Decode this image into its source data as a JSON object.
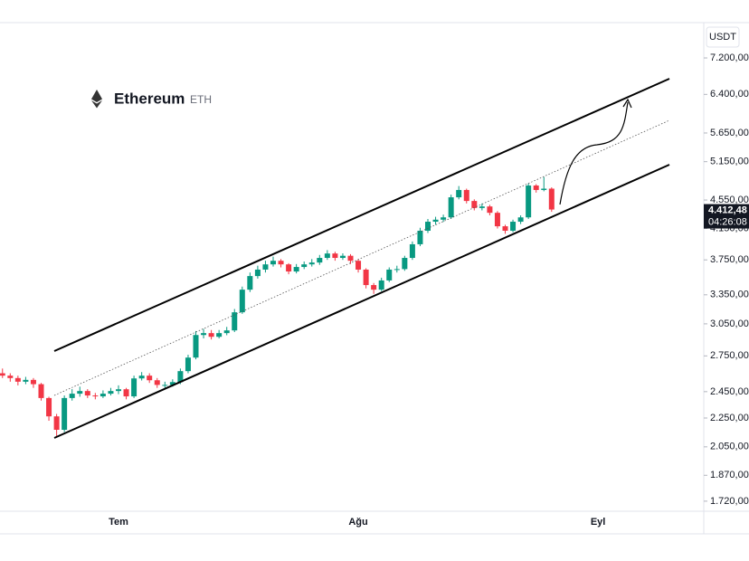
{
  "chart_data": {
    "type": "candlestick",
    "title": "Ethereum",
    "subtitle": "ETH",
    "currency": "USDT",
    "log_scale": true,
    "grid": false,
    "up_color": "#089981",
    "down_color": "#f23645",
    "ylim": [
      1665,
      8070
    ],
    "yticks": [
      {
        "value": 7200,
        "label": "7.200,00"
      },
      {
        "value": 6400,
        "label": "6.400,00"
      },
      {
        "value": 5650,
        "label": "5.650,00"
      },
      {
        "value": 5150,
        "label": "5.150,00"
      },
      {
        "value": 4550,
        "label": "4.550,00"
      },
      {
        "value": 4150,
        "label": "4.150,00"
      },
      {
        "value": 3750,
        "label": "3.750,00"
      },
      {
        "value": 3350,
        "label": "3.350,00"
      },
      {
        "value": 3050,
        "label": "3.050,00"
      },
      {
        "value": 2750,
        "label": "2.750,00"
      },
      {
        "value": 2450,
        "label": "2.450,00"
      },
      {
        "value": 2250,
        "label": "2.250,00"
      },
      {
        "value": 2050,
        "label": "2.050,00"
      },
      {
        "value": 1870,
        "label": "1.870,00"
      },
      {
        "value": 1720,
        "label": "1.720,00"
      }
    ],
    "last_price": {
      "value": 4412.48,
      "label": "4.412,48"
    },
    "countdown": "04:26:08",
    "categories": [
      null,
      null,
      null,
      null,
      null,
      null,
      null,
      null,
      null,
      null,
      null,
      null,
      null,
      null,
      null,
      "Tem",
      null,
      null,
      null,
      null,
      null,
      null,
      null,
      null,
      null,
      null,
      null,
      null,
      null,
      null,
      null,
      null,
      null,
      null,
      null,
      null,
      null,
      null,
      null,
      null,
      null,
      null,
      null,
      null,
      null,
      null,
      "Ağu",
      null,
      null,
      null,
      null,
      null,
      null,
      null,
      null,
      null,
      null,
      null,
      null,
      null,
      null,
      null,
      null,
      null,
      null,
      null,
      null,
      null,
      null,
      null,
      null,
      null,
      null,
      null,
      null,
      null,
      null,
      "Eyl",
      null,
      null,
      null,
      null,
      null,
      null,
      null,
      null,
      null,
      null,
      null,
      null,
      null
    ],
    "open": [
      2600,
      2580,
      2560,
      2530,
      2545,
      2510,
      2400,
      2262,
      2166,
      2400,
      2434,
      2455,
      2420,
      2413,
      2434,
      2455,
      2469,
      2413,
      2557,
      2580,
      2542,
      2504,
      2504,
      2527,
      2618,
      2735,
      2942,
      2960,
      2925,
      2960,
      2986,
      3166,
      3406,
      3559,
      3634,
      3696,
      3739,
      3696,
      3612,
      3665,
      3696,
      3718,
      3774,
      3828,
      3774,
      3800,
      3739,
      3634,
      3457,
      3406,
      3509,
      3634,
      3640,
      3774,
      3944,
      4120,
      4242,
      4270,
      4302,
      4590,
      4700,
      4536,
      4434,
      4456,
      4366,
      4180,
      4120,
      4242,
      4302,
      4768,
      4700,
      4720,
      null,
      null,
      null,
      null,
      null,
      null,
      null,
      null,
      null,
      null,
      null,
      null,
      null,
      null,
      null,
      null,
      null,
      null,
      null
    ],
    "high": [
      2640,
      2600,
      2580,
      2570,
      2560,
      2520,
      2410,
      2280,
      2420,
      2470,
      2490,
      2470,
      2440,
      2460,
      2480,
      2500,
      2480,
      2580,
      2610,
      2600,
      2560,
      2530,
      2550,
      2640,
      2760,
      2980,
      3000,
      2990,
      2990,
      3020,
      3200,
      3440,
      3600,
      3680,
      3740,
      3790,
      3760,
      3710,
      3700,
      3730,
      3760,
      3810,
      3870,
      3850,
      3830,
      3820,
      3760,
      3650,
      3480,
      3540,
      3660,
      3680,
      3800,
      3980,
      4160,
      4280,
      4310,
      4340,
      4630,
      4760,
      4720,
      4560,
      4500,
      4480,
      4390,
      4200,
      4270,
      4330,
      4800,
      4790,
      4900,
      4740,
      null,
      null,
      null,
      null,
      null,
      null,
      null,
      null,
      null,
      null,
      null,
      null,
      null,
      null,
      null,
      null,
      null,
      null,
      null
    ],
    "low": [
      2560,
      2530,
      2500,
      2510,
      2480,
      2380,
      2230,
      2120,
      2150,
      2380,
      2410,
      2400,
      2390,
      2400,
      2420,
      2430,
      2390,
      2400,
      2540,
      2520,
      2480,
      2480,
      2490,
      2510,
      2600,
      2720,
      2910,
      2900,
      2910,
      2940,
      2970,
      3150,
      3380,
      3530,
      3600,
      3670,
      3660,
      3580,
      3590,
      3640,
      3670,
      3690,
      3750,
      3740,
      3750,
      3700,
      3600,
      3420,
      3360,
      3390,
      3490,
      3600,
      3620,
      3750,
      3920,
      4090,
      4200,
      4240,
      4280,
      4560,
      4500,
      4400,
      4400,
      4330,
      4150,
      4080,
      4100,
      4210,
      4280,
      4660,
      4680,
      4380,
      null,
      null,
      null,
      null,
      null,
      null,
      null,
      null,
      null,
      null,
      null,
      null,
      null,
      null,
      null,
      null,
      null,
      null,
      null
    ],
    "close": [
      2580,
      2560,
      2530,
      2545,
      2510,
      2400,
      2262,
      2166,
      2400,
      2434,
      2455,
      2420,
      2413,
      2434,
      2455,
      2469,
      2413,
      2557,
      2580,
      2542,
      2504,
      2504,
      2527,
      2618,
      2735,
      2942,
      2960,
      2925,
      2960,
      2986,
      3166,
      3406,
      3559,
      3634,
      3696,
      3739,
      3696,
      3612,
      3665,
      3696,
      3718,
      3774,
      3828,
      3774,
      3800,
      3739,
      3634,
      3457,
      3406,
      3509,
      3634,
      3640,
      3774,
      3944,
      4120,
      4242,
      4270,
      4302,
      4590,
      4700,
      4536,
      4434,
      4456,
      4366,
      4180,
      4120,
      4242,
      4302,
      4768,
      4700,
      4720,
      4412.48,
      null,
      null,
      null,
      null,
      null,
      null,
      null,
      null,
      null,
      null,
      null,
      null,
      null,
      null,
      null,
      null,
      null,
      null,
      null
    ]
  }
}
